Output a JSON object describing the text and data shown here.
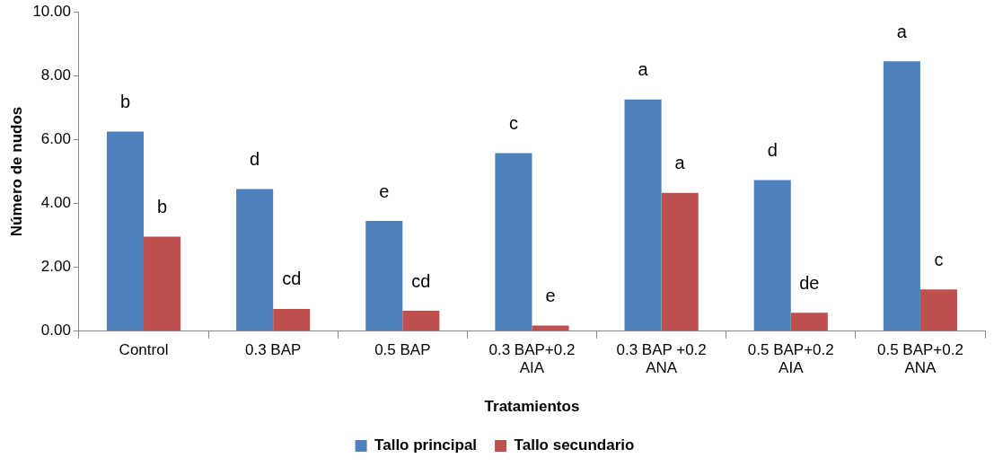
{
  "chart_data": {
    "type": "bar",
    "xlabel": "Tratamientos",
    "ylabel": "Número de nudos",
    "categories": [
      "Control",
      "0.3 BAP",
      "0.5 BAP",
      "0.3 BAP+0.2 AIA",
      "0.3 BAP +0.2 ANA",
      "0.5 BAP+0.2 AIA",
      "0.5 BAP+0.2 ANA"
    ],
    "series": [
      {
        "name": "Tallo principal",
        "color": "#4f81bd",
        "values": [
          6.25,
          4.45,
          3.45,
          5.58,
          7.26,
          4.73,
          8.45
        ]
      },
      {
        "name": "Tallo secundario",
        "color": "#c0504d",
        "values": [
          2.96,
          0.7,
          0.64,
          0.18,
          4.33,
          0.58,
          1.31
        ]
      }
    ],
    "ylim": [
      0,
      10
    ],
    "yticks": [
      {
        "value": 0,
        "label": "0.00"
      },
      {
        "value": 2,
        "label": "2.00"
      },
      {
        "value": 4,
        "label": "4.00"
      },
      {
        "value": 6,
        "label": "6.00"
      },
      {
        "value": 8,
        "label": "8.00"
      },
      {
        "value": 10,
        "label": "10.00"
      }
    ],
    "grid": false,
    "legend": "bottom",
    "annotations": [
      "b",
      "b",
      "d",
      "cd",
      "e",
      "cd",
      "c",
      "e",
      "a",
      "a",
      "d",
      "de",
      "a",
      "c"
    ]
  }
}
